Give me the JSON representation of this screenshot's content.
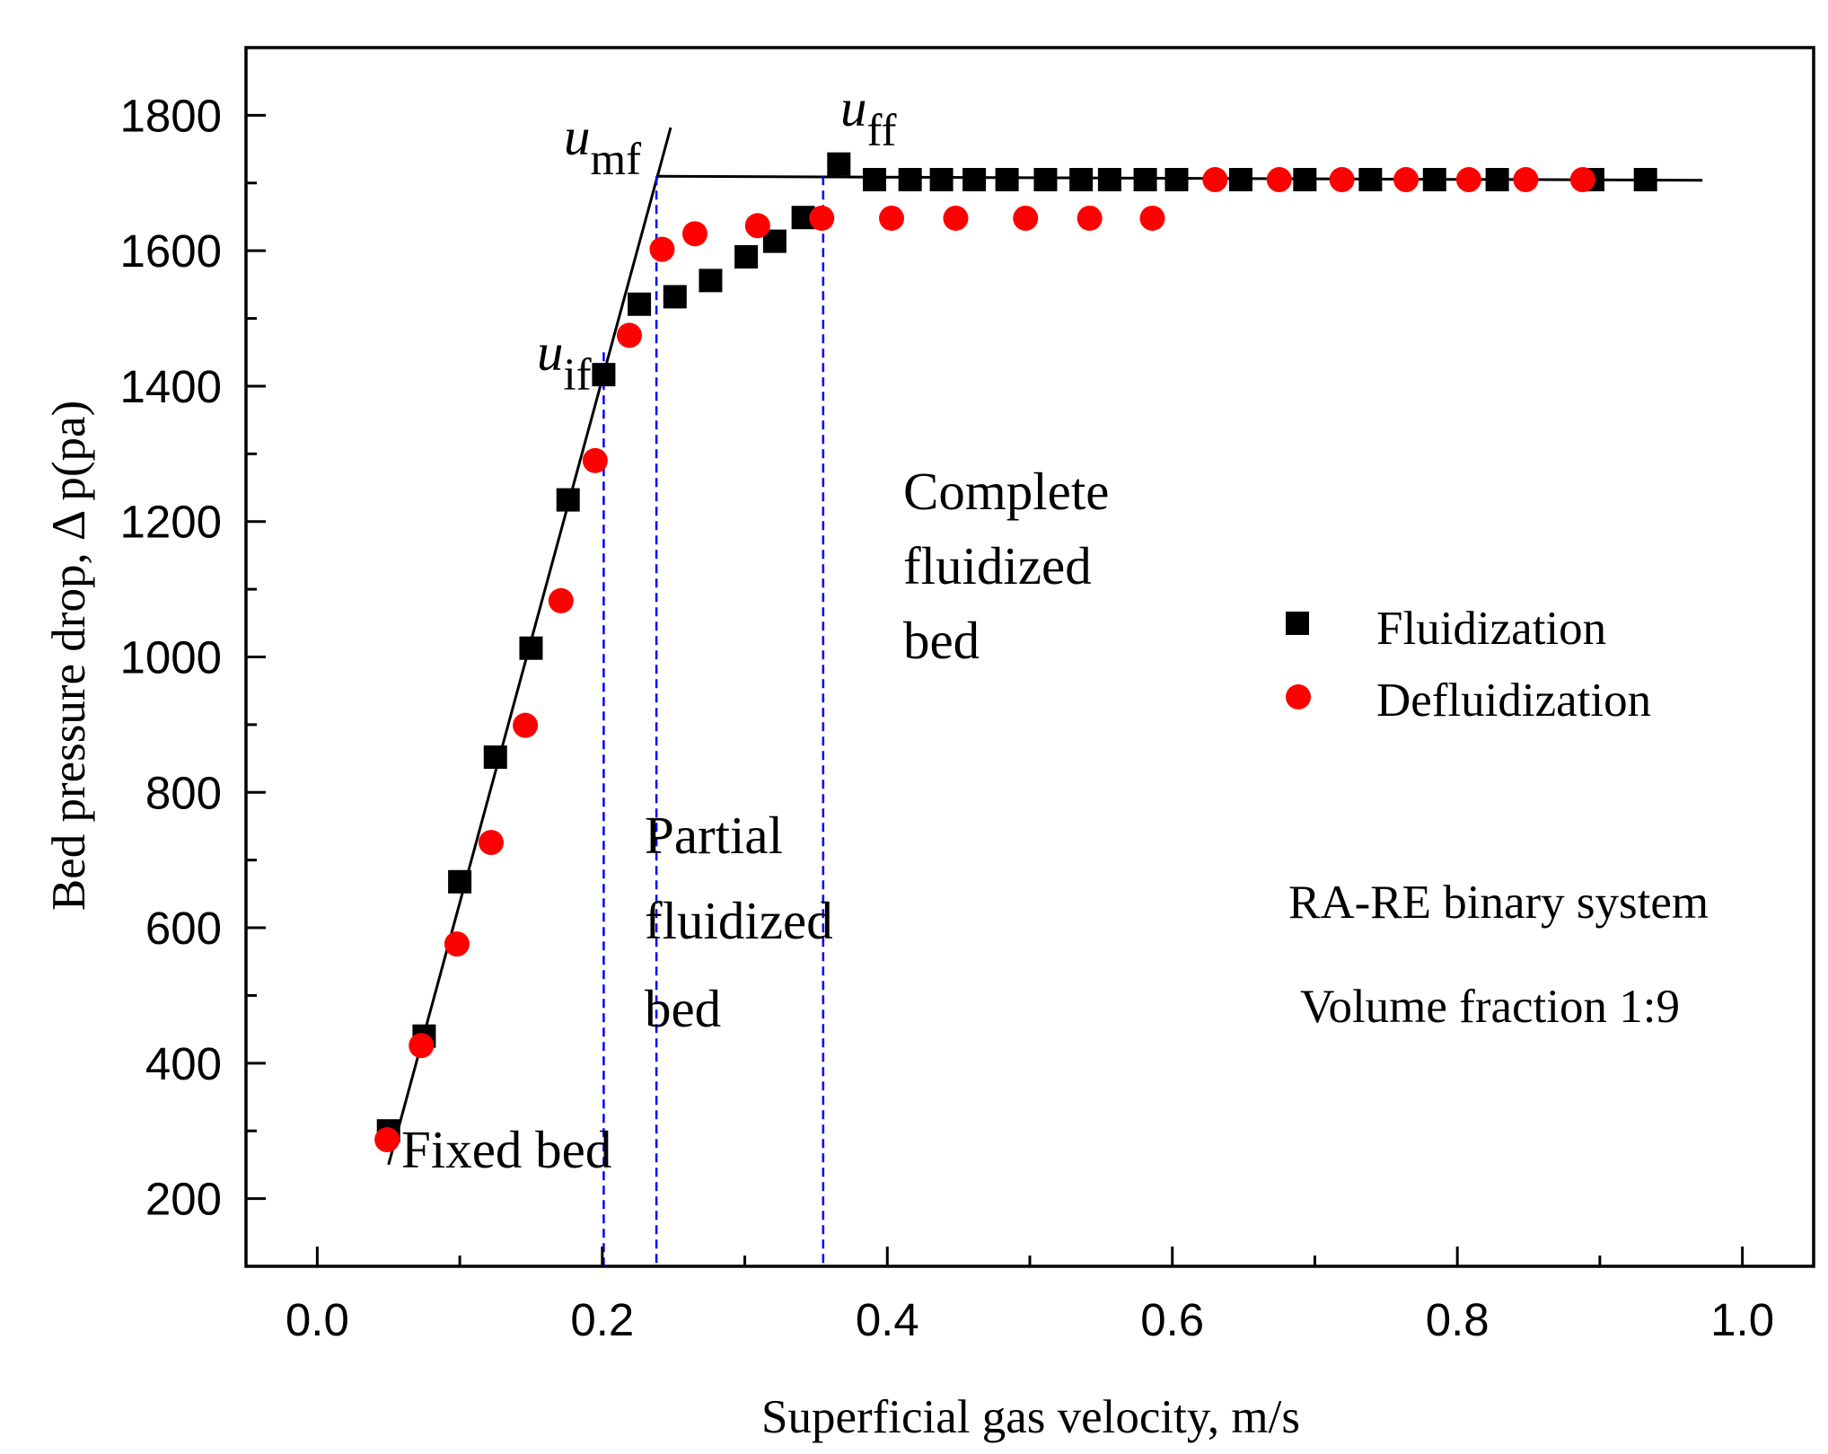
{
  "chart_data": {
    "type": "scatter",
    "xlabel": "Superficial gas velocity, m/s",
    "ylabel": "Bed pressure drop, Δ p(pa)",
    "xlim": [
      -0.05,
      1.05
    ],
    "ylim": [
      100,
      1900
    ],
    "xticks": [
      "0.0",
      "0.2",
      "0.4",
      "0.6",
      "0.8",
      "1.0"
    ],
    "yticks": [
      "200",
      "400",
      "600",
      "800",
      "1000",
      "1200",
      "1400",
      "1600",
      "1800"
    ],
    "grid": false,
    "legend_position": "right",
    "series": [
      {
        "name": "Fluidization",
        "marker": "square",
        "color": "#000000",
        "points": [
          [
            0.05,
            300
          ],
          [
            0.075,
            440
          ],
          [
            0.1,
            668
          ],
          [
            0.125,
            852
          ],
          [
            0.15,
            1013
          ],
          [
            0.176,
            1232
          ],
          [
            0.201,
            1417
          ],
          [
            0.226,
            1521
          ],
          [
            0.251,
            1532
          ],
          [
            0.276,
            1556
          ],
          [
            0.301,
            1591
          ],
          [
            0.321,
            1614
          ],
          [
            0.341,
            1649
          ],
          [
            0.366,
            1728
          ],
          [
            0.391,
            1705
          ],
          [
            0.416,
            1705
          ],
          [
            0.438,
            1705
          ],
          [
            0.461,
            1705
          ],
          [
            0.484,
            1705
          ],
          [
            0.511,
            1705
          ],
          [
            0.536,
            1705
          ],
          [
            0.556,
            1705
          ],
          [
            0.581,
            1705
          ],
          [
            0.603,
            1705
          ],
          [
            0.648,
            1705
          ],
          [
            0.693,
            1705
          ],
          [
            0.739,
            1705
          ],
          [
            0.784,
            1705
          ],
          [
            0.828,
            1705
          ],
          [
            0.895,
            1705
          ],
          [
            0.932,
            1705
          ]
        ]
      },
      {
        "name": "Defluidization",
        "marker": "circle",
        "color": "#ff0000",
        "points": [
          [
            0.049,
            287
          ],
          [
            0.073,
            426
          ],
          [
            0.098,
            576
          ],
          [
            0.122,
            726
          ],
          [
            0.146,
            899
          ],
          [
            0.171,
            1083
          ],
          [
            0.195,
            1290
          ],
          [
            0.219,
            1475
          ],
          [
            0.242,
            1602
          ],
          [
            0.265,
            1625
          ],
          [
            0.309,
            1637
          ],
          [
            0.354,
            1648
          ],
          [
            0.403,
            1648
          ],
          [
            0.448,
            1648
          ],
          [
            0.497,
            1648
          ],
          [
            0.542,
            1648
          ],
          [
            0.586,
            1648
          ],
          [
            0.63,
            1705
          ],
          [
            0.675,
            1705
          ],
          [
            0.719,
            1705
          ],
          [
            0.764,
            1705
          ],
          [
            0.808,
            1705
          ],
          [
            0.848,
            1705
          ],
          [
            0.888,
            1705
          ]
        ]
      }
    ],
    "fit_lines": [
      {
        "x": [
          0.05,
          0.248
        ],
        "y": [
          250,
          1782
        ]
      },
      {
        "x": [
          0.238,
          0.972
        ],
        "y": [
          1710,
          1704
        ]
      }
    ],
    "vertical_lines": [
      {
        "x": 0.201,
        "y": [
          100,
          1450
        ],
        "color": "#0000ff",
        "style": "dashed"
      },
      {
        "x": 0.238,
        "y": [
          100,
          1710
        ],
        "color": "#0000ff",
        "style": "dashed"
      },
      {
        "x": 0.355,
        "y": [
          100,
          1710
        ],
        "color": "#0000ff",
        "style": "dashed"
      }
    ],
    "annotations": {
      "umf": {
        "main": "u",
        "sub": "mf"
      },
      "uff": {
        "main": "u",
        "sub": "ff"
      },
      "uif": {
        "main": "u",
        "sub": "if"
      },
      "complete_bed": [
        "Complete",
        "fluidized",
        "bed"
      ],
      "partial_bed": [
        "Partial",
        "fluidized",
        "bed"
      ],
      "fixed_bed": "Fixed bed",
      "system": "RA-RE binary system",
      "fraction": "Volume fraction 1:9"
    }
  }
}
